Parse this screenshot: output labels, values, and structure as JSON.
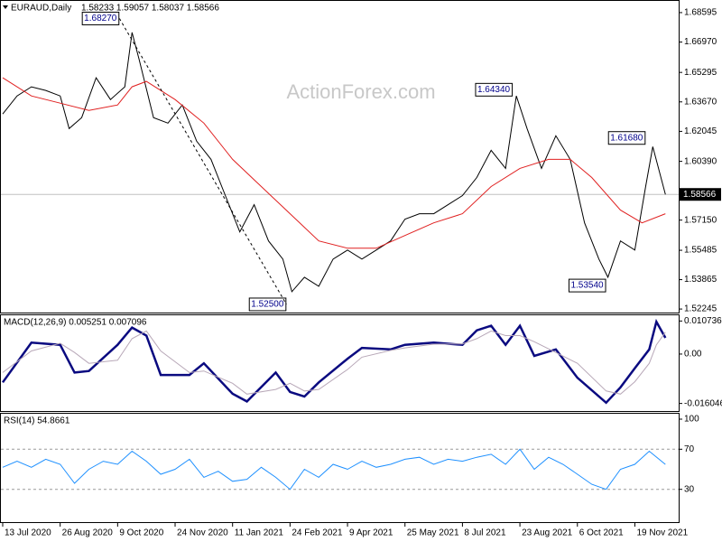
{
  "chart_data": [
    {
      "type": "line",
      "title": "EURAUD,Daily",
      "subtitle": "1.58233 1.59057 1.58037 1.58566",
      "watermark": "ActionForex.com",
      "xlim": [
        -1.5,
        376.4
      ],
      "ylim": [
        1.5205,
        1.6919
      ],
      "grid": false,
      "yticks": [
        1.68595,
        {
          "value": 1.6697,
          "label": "1.66970"
        },
        1.65295,
        {
          "value": 1.6367,
          "label": "1.63670"
        },
        1.62045,
        {
          "value": 1.6039,
          "label": "1.60390"
        },
        {
          "value": 1.5715,
          "label": "1.57150"
        },
        1.55485,
        1.53865,
        1.52245
      ],
      "current_price": 1.58566,
      "series": [
        {
          "color": "#000000",
          "x": [
            0,
            8,
            16,
            24,
            32,
            37,
            44,
            52,
            60,
            68,
            72,
            76,
            84,
            92,
            100,
            108,
            116,
            124,
            132,
            140,
            148,
            156,
            161,
            168,
            176,
            184,
            192,
            200,
            208,
            216,
            224,
            232,
            240,
            248,
            256,
            264,
            272,
            280,
            286,
            292,
            300,
            308,
            316,
            324,
            332,
            337,
            344,
            352,
            358,
            362,
            369
          ],
          "values": [
            1.63,
            1.64,
            1.645,
            1.643,
            1.64,
            1.622,
            1.628,
            1.65,
            1.638,
            1.645,
            1.675,
            1.66,
            1.628,
            1.625,
            1.635,
            1.615,
            1.605,
            1.585,
            1.565,
            1.58,
            1.56,
            1.55,
            1.532,
            1.54,
            1.535,
            1.55,
            1.555,
            1.55,
            1.555,
            1.56,
            1.572,
            1.575,
            1.575,
            1.58,
            1.585,
            1.595,
            1.61,
            1.6,
            1.64,
            1.622,
            1.6,
            1.618,
            1.605,
            1.57,
            1.55,
            1.54,
            1.56,
            1.555,
            1.59,
            1.612,
            1.58566
          ]
        },
        {
          "color": "#e02020",
          "x": [
            0,
            16,
            32,
            48,
            64,
            72,
            80,
            96,
            112,
            128,
            144,
            160,
            176,
            192,
            208,
            224,
            240,
            256,
            272,
            288,
            304,
            316,
            328,
            344,
            356,
            369
          ],
          "values": [
            1.65,
            1.64,
            1.636,
            1.632,
            1.635,
            1.645,
            1.648,
            1.638,
            1.625,
            1.605,
            1.59,
            1.575,
            1.56,
            1.556,
            1.556,
            1.563,
            1.57,
            1.575,
            1.59,
            1.6,
            1.605,
            1.605,
            1.595,
            1.577,
            1.57,
            1.575
          ]
        }
      ],
      "annotations": [
        {
          "value": 1.6827,
          "label": "1.68270",
          "x": 65
        },
        {
          "value": 1.525,
          "label": "1.52500",
          "x": 158
        },
        {
          "value": 1.6434,
          "label": "1.64340",
          "x": 284
        },
        {
          "value": 1.6168,
          "label": "1.61680",
          "x": 358
        },
        {
          "value": 1.5354,
          "label": "1.53540",
          "x": 336
        }
      ]
    },
    {
      "type": "line",
      "title": "MACD(12,26,9) 0.005251 0.007096",
      "xlim": [
        -1.5,
        376.4
      ],
      "ylim": [
        -0.0185,
        0.0126
      ],
      "grid": false,
      "yticks": [
        0.010736,
        {
          "value": 0,
          "label": "0.00"
        },
        -0.016046
      ],
      "series": [
        {
          "color": "#0a0a80",
          "width": 2.5,
          "x": [
            0,
            16,
            32,
            40,
            48,
            64,
            72,
            80,
            88,
            104,
            112,
            128,
            136,
            152,
            160,
            168,
            176,
            192,
            200,
            216,
            224,
            240,
            256,
            264,
            272,
            280,
            288,
            296,
            308,
            320,
            336,
            344,
            352,
            360,
            364,
            369
          ],
          "values": [
            -0.0092,
            0.0037,
            0.003,
            -0.006,
            -0.0055,
            0.003,
            0.0086,
            0.006,
            -0.0068,
            -0.0068,
            -0.003,
            -0.0129,
            -0.0154,
            -0.006,
            -0.0123,
            -0.0138,
            -0.0092,
            -0.0015,
            0.002,
            0.0015,
            0.003,
            0.0037,
            0.003,
            0.0077,
            0.0092,
            0.003,
            0.0092,
            -0.0006,
            0.0015,
            -0.0077,
            -0.0158,
            -0.0108,
            -0.0046,
            0.0015,
            0.0105,
            0.005251
          ]
        },
        {
          "color": "#b8a8b8",
          "width": 1,
          "x": [
            0,
            16,
            32,
            40,
            48,
            64,
            72,
            80,
            88,
            104,
            112,
            128,
            136,
            152,
            160,
            168,
            176,
            192,
            200,
            216,
            224,
            240,
            256,
            264,
            272,
            280,
            288,
            296,
            308,
            320,
            336,
            344,
            352,
            360,
            364,
            369
          ],
          "values": [
            -0.006,
            0.001,
            0.0035,
            0.0005,
            -0.003,
            -0.002,
            0.005,
            0.0075,
            0.001,
            -0.006,
            -0.0055,
            -0.0095,
            -0.013,
            -0.0115,
            -0.0095,
            -0.012,
            -0.0115,
            -0.005,
            -0.001,
            0.0012,
            0.002,
            0.0032,
            0.0033,
            0.005,
            0.0075,
            0.006,
            0.006,
            0.004,
            0.0005,
            -0.003,
            -0.012,
            -0.013,
            -0.009,
            -0.003,
            0.003,
            0.007096
          ]
        }
      ]
    },
    {
      "type": "line",
      "title": "RSI(14) 54.8661",
      "xlim": [
        -1.5,
        376.4
      ],
      "ylim": [
        0,
        100
      ],
      "grid": true,
      "yticks": [
        100,
        70,
        30
      ],
      "xticks": [
        {
          "value": 0,
          "label": "13 Jul 2020"
        },
        {
          "value": 32,
          "label": "26 Aug 2020"
        },
        {
          "value": 64,
          "label": "9 Oct 2020"
        },
        {
          "value": 96,
          "label": "24 Nov 2020"
        },
        {
          "value": 128,
          "label": "11 Jan 2021"
        },
        {
          "value": 160,
          "label": "24 Feb 2021"
        },
        {
          "value": 192,
          "label": "9 Apr 2021"
        },
        {
          "value": 224,
          "label": "25 May 2021"
        },
        {
          "value": 256,
          "label": "8 Jul 2021"
        },
        {
          "value": 288,
          "label": "23 Aug 2021"
        },
        {
          "value": 320,
          "label": "6 Oct 2021"
        },
        {
          "value": 352,
          "label": "19 Nov 2021"
        }
      ],
      "series": [
        {
          "color": "#1e90ff",
          "width": 1,
          "x": [
            0,
            8,
            16,
            24,
            32,
            40,
            48,
            56,
            64,
            72,
            80,
            88,
            96,
            104,
            112,
            120,
            128,
            136,
            144,
            152,
            160,
            168,
            176,
            184,
            192,
            200,
            208,
            216,
            224,
            232,
            240,
            248,
            256,
            264,
            272,
            280,
            288,
            296,
            304,
            312,
            320,
            328,
            336,
            344,
            352,
            360,
            369
          ],
          "values": [
            52,
            58,
            52,
            60,
            55,
            36,
            50,
            58,
            55,
            68,
            58,
            45,
            50,
            60,
            42,
            48,
            38,
            40,
            52,
            42,
            30,
            50,
            42,
            55,
            50,
            58,
            52,
            55,
            60,
            62,
            55,
            60,
            58,
            62,
            65,
            55,
            70,
            50,
            62,
            55,
            45,
            35,
            30,
            50,
            55,
            68,
            54.8661
          ]
        }
      ]
    }
  ]
}
